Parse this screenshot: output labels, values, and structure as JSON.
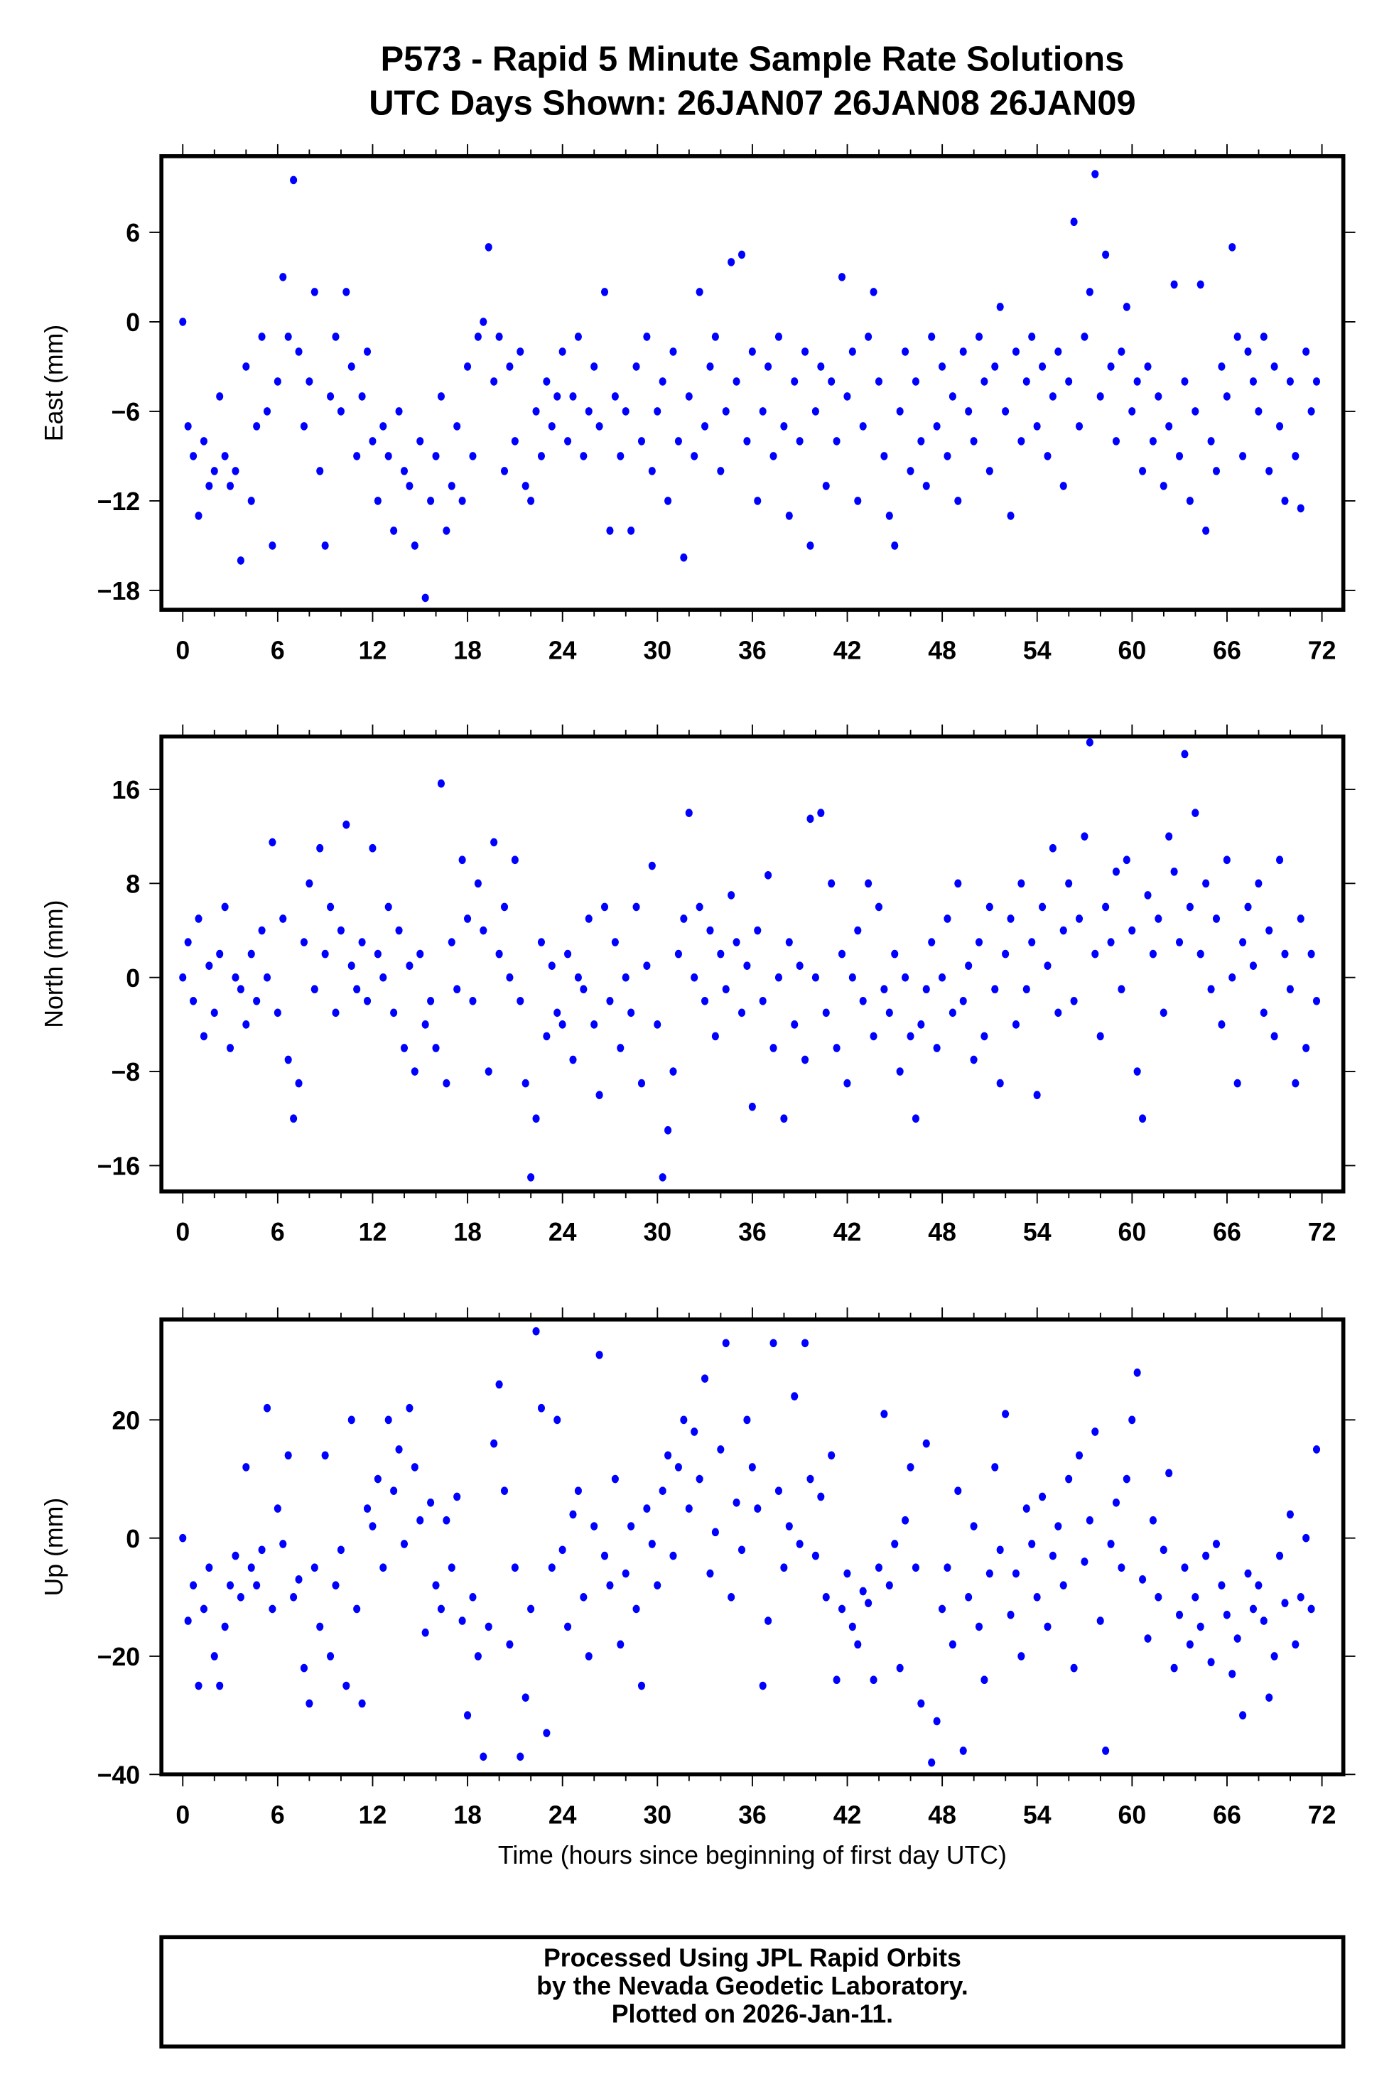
{
  "header": {
    "title_line1": "P573 - Rapid 5 Minute Sample Rate Solutions",
    "title_line2": "UTC Days Shown:  26JAN07 26JAN08 26JAN09"
  },
  "xlabel": "Time (hours since beginning of first day UTC)",
  "footer": {
    "line1": "Processed Using JPL Rapid Orbits",
    "line2": "by the Nevada Geodetic Laboratory.",
    "line3": "Plotted on 2026-Jan-11."
  },
  "colors": {
    "points": "#0000ff",
    "axes": "#000000"
  },
  "chart_data": [
    {
      "type": "scatter",
      "name": "east",
      "ylabel": "East (mm)",
      "xlim": [
        -1.35,
        73.35
      ],
      "ylim": [
        -19.3,
        11.1
      ],
      "xticks": [
        0,
        6,
        12,
        18,
        24,
        30,
        36,
        42,
        48,
        54,
        60,
        66,
        72
      ],
      "yticks": [
        6,
        0,
        -6,
        -12,
        -18
      ],
      "x_start": 0,
      "x_step_hours": 0.3333,
      "values": [
        0,
        -7,
        -9,
        -13,
        -8,
        -11,
        -10,
        -5,
        -9,
        -11,
        -10,
        -16,
        -3,
        -12,
        -7,
        -1,
        -6,
        -15,
        -4,
        3,
        -1,
        9.5,
        -2,
        -7,
        -4,
        2,
        -10,
        -15,
        -5,
        -1,
        -6,
        2,
        -3,
        -9,
        -5,
        -2,
        -8,
        -12,
        -7,
        -9,
        -14,
        -6,
        -10,
        -11,
        -15,
        -8,
        -18.5,
        -12,
        -9,
        -5,
        -14,
        -11,
        -7,
        -12,
        -3,
        -9,
        -1,
        0,
        5,
        -4,
        -1,
        -10,
        -3,
        -8,
        -2,
        -11,
        -12,
        -6,
        -9,
        -4,
        -7,
        -5,
        -2,
        -8,
        -5,
        -1,
        -9,
        -6,
        -3,
        -7,
        2,
        -14,
        -5,
        -9,
        -6,
        -14,
        -3,
        -8,
        -1,
        -10,
        -6,
        -4,
        -12,
        -2,
        -8,
        -15.8,
        -5,
        -9,
        2,
        -7,
        -3,
        -1,
        -10,
        -6,
        4,
        -4,
        4.5,
        -8,
        -2,
        -12,
        -6,
        -3,
        -9,
        -1,
        -7,
        -13,
        -4,
        -8,
        -2,
        -15,
        -6,
        -3,
        -11,
        -4,
        -8,
        3,
        -5,
        -2,
        -12,
        -7,
        -1,
        2,
        -4,
        -9,
        -13,
        -15,
        -6,
        -2,
        -10,
        -4,
        -8,
        -11,
        -1,
        -7,
        -3,
        -9,
        -5,
        -12,
        -2,
        -6,
        -8,
        -1,
        -4,
        -10,
        -3,
        1,
        -6,
        -13,
        -2,
        -8,
        -4,
        -1,
        -7,
        -3,
        -9,
        -5,
        -2,
        -11,
        -4,
        6.7,
        -7,
        -1,
        2,
        9.9,
        -5,
        4.5,
        -3,
        -8,
        -2,
        1,
        -6,
        -4,
        -10,
        -3,
        -8,
        -5,
        -11,
        -7,
        2.5,
        -9,
        -4,
        -12,
        -6,
        2.5,
        -14,
        -8,
        -10,
        -3,
        -5,
        5,
        -1,
        -9,
        -2,
        -4,
        -6,
        -1,
        -10,
        -3,
        -7,
        -12,
        -4,
        -9,
        -12.5,
        -2,
        -6,
        -4
      ]
    },
    {
      "type": "scatter",
      "name": "north",
      "ylabel": "North (mm)",
      "xlim": [
        -1.35,
        73.35
      ],
      "ylim": [
        -18.2,
        20.5
      ],
      "xticks": [
        0,
        6,
        12,
        18,
        24,
        30,
        36,
        42,
        48,
        54,
        60,
        66,
        72
      ],
      "yticks": [
        16,
        8,
        0,
        -8,
        -16
      ],
      "x_start": 0,
      "x_step_hours": 0.3333,
      "values": [
        0,
        3,
        -2,
        5,
        -5,
        1,
        -3,
        2,
        6,
        -6,
        0,
        -1,
        -4,
        2,
        -2,
        4,
        0,
        11.5,
        -3,
        5,
        -7,
        -12,
        -9,
        3,
        8,
        -1,
        11,
        2,
        6,
        -3,
        4,
        13,
        1,
        -1,
        3,
        -2,
        11,
        2,
        0,
        6,
        -3,
        4,
        -6,
        1,
        -8,
        2,
        -4,
        -2,
        -6,
        16.5,
        -9,
        3,
        -1,
        10,
        5,
        -2,
        8,
        4,
        -8,
        11.5,
        2,
        6,
        0,
        10,
        -2,
        -9,
        -17,
        -12,
        3,
        -5,
        1,
        -3,
        -4,
        2,
        -7,
        0,
        -1,
        5,
        -4,
        -10,
        6,
        -2,
        3,
        -6,
        0,
        -3,
        6,
        -9,
        1,
        9.5,
        -4,
        -17,
        -13,
        -8,
        2,
        5,
        14,
        0,
        6,
        -2,
        4,
        -5,
        2,
        -1,
        7,
        3,
        -3,
        1,
        -11,
        4,
        -2,
        8.7,
        -6,
        0,
        -12,
        3,
        -4,
        1,
        -7,
        13.5,
        0,
        14,
        -3,
        8,
        -6,
        2,
        -9,
        0,
        4,
        -2,
        8,
        -5,
        6,
        -1,
        -3,
        2,
        -8,
        0,
        -5,
        -12,
        -4,
        -1,
        3,
        -6,
        0,
        5,
        -3,
        8,
        -2,
        1,
        -7,
        3,
        -5,
        6,
        -1,
        -9,
        2,
        5,
        -4,
        8,
        -1,
        3,
        -10,
        6,
        1,
        11,
        -3,
        4,
        8,
        -2,
        5,
        12,
        20,
        2,
        -5,
        6,
        3,
        9,
        -1,
        10,
        4,
        -8,
        -12,
        7,
        2,
        5,
        -3,
        12,
        9,
        3,
        19,
        6,
        14,
        2,
        8,
        -1,
        5,
        -4,
        10,
        0,
        -9,
        3,
        6,
        1,
        8,
        -3,
        4,
        -5,
        10,
        2,
        -1,
        -9,
        5,
        -6,
        2,
        -2
      ]
    },
    {
      "type": "scatter",
      "name": "up",
      "ylabel": "Up (mm)",
      "xlim": [
        -1.35,
        73.35
      ],
      "ylim": [
        -40,
        37
      ],
      "xticks": [
        0,
        6,
        12,
        18,
        24,
        30,
        36,
        42,
        48,
        54,
        60,
        66,
        72
      ],
      "yticks": [
        20,
        0,
        -20,
        -40
      ],
      "x_start": 0,
      "x_step_hours": 0.3333,
      "values": [
        0,
        -14,
        -8,
        -25,
        -12,
        -5,
        -20,
        -25,
        -15,
        -8,
        -3,
        -10,
        12,
        -5,
        -8,
        -2,
        22,
        -12,
        5,
        -1,
        14,
        -10,
        -7,
        -22,
        -28,
        -5,
        -15,
        14,
        -20,
        -8,
        -2,
        -25,
        20,
        -12,
        -28,
        5,
        2,
        10,
        -5,
        20,
        8,
        15,
        -1,
        22,
        12,
        3,
        -16,
        6,
        -8,
        -12,
        3,
        -5,
        7,
        -14,
        -30,
        -10,
        -20,
        -37,
        -15,
        16,
        26,
        8,
        -18,
        -5,
        -37,
        -27,
        -12,
        35,
        22,
        -33,
        -5,
        20,
        -2,
        -15,
        4,
        8,
        -10,
        -20,
        2,
        31,
        -3,
        -8,
        10,
        -18,
        -6,
        2,
        -12,
        -25,
        5,
        -1,
        -8,
        8,
        14,
        -3,
        12,
        20,
        5,
        18,
        10,
        27,
        -6,
        1,
        15,
        33,
        -10,
        6,
        -2,
        20,
        12,
        5,
        -25,
        -14,
        33,
        8,
        -5,
        2,
        24,
        -1,
        33,
        10,
        -3,
        7,
        -10,
        14,
        -24,
        -12,
        -6,
        -15,
        -18,
        -9,
        -11,
        -24,
        -5,
        21,
        -8,
        -1,
        -22,
        3,
        12,
        -5,
        -28,
        16,
        -38,
        -31,
        -12,
        -5,
        -18,
        8,
        -36,
        -10,
        2,
        -15,
        -24,
        -6,
        12,
        -2,
        21,
        -13,
        -6,
        -20,
        5,
        -1,
        -10,
        7,
        -15,
        -3,
        2,
        -8,
        10,
        -22,
        14,
        -4,
        3,
        18,
        -14,
        -36,
        -1,
        6,
        -5,
        10,
        20,
        28,
        -7,
        -17,
        3,
        -10,
        -2,
        11,
        -22,
        -13,
        -5,
        -18,
        -10,
        -15,
        -3,
        -21,
        -1,
        -8,
        -13,
        -23,
        -17,
        -30,
        -6,
        -12,
        -8,
        -14,
        -27,
        -20,
        -3,
        -11,
        4,
        -18,
        -10,
        0,
        -12,
        15
      ]
    }
  ]
}
